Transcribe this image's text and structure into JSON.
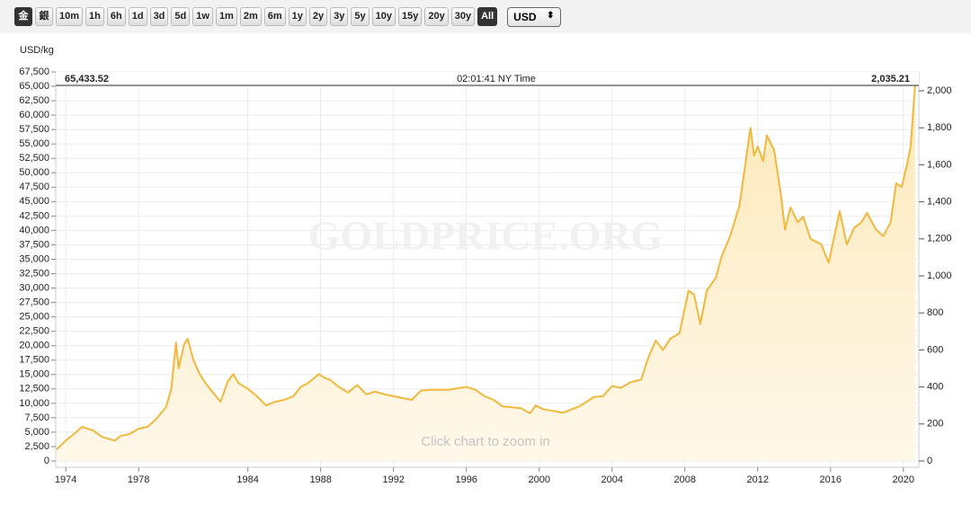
{
  "toolbar": {
    "buttons": [
      "金",
      "銀",
      "10m",
      "1h",
      "6h",
      "1d",
      "3d",
      "5d",
      "1w",
      "1m",
      "2m",
      "6m",
      "1y",
      "2y",
      "3y",
      "5y",
      "10y",
      "15y",
      "20y",
      "30y",
      "All"
    ],
    "active": [
      0,
      20
    ],
    "currency": "USD"
  },
  "chart_data": {
    "type": "area",
    "ylabel": "USD/kg",
    "header_left": "65,433.52",
    "header_center": "02:01:41 NY Time",
    "header_right": "2,035.21",
    "watermark": "GOLDPRICE.ORG",
    "annotation": "Click chart to zoom in",
    "x": [
      1973.5,
      1974.0,
      1974.5,
      1974.9,
      1975.5,
      1976.0,
      1976.7,
      1977.0,
      1977.5,
      1978.0,
      1978.5,
      1979.0,
      1979.5,
      1979.8,
      1980.05,
      1980.2,
      1980.5,
      1980.7,
      1981.0,
      1981.3,
      1981.6,
      1982.0,
      1982.5,
      1982.9,
      1983.2,
      1983.5,
      1984.0,
      1984.5,
      1985.0,
      1985.5,
      1986.0,
      1986.5,
      1986.9,
      1987.3,
      1987.9,
      1988.2,
      1988.5,
      1989.0,
      1989.5,
      1990.0,
      1990.5,
      1991.0,
      1991.5,
      1992.0,
      1992.5,
      1993.0,
      1993.5,
      1994.0,
      1995.0,
      1996.0,
      1996.5,
      1997.0,
      1997.5,
      1998.0,
      1998.5,
      1999.0,
      1999.5,
      1999.8,
      2000.2,
      2000.8,
      2001.3,
      2001.8,
      2002.2,
      2002.6,
      2003.0,
      2003.5,
      2004.0,
      2004.5,
      2005.0,
      2005.6,
      2006.0,
      2006.4,
      2006.8,
      2007.2,
      2007.7,
      2008.2,
      2008.5,
      2008.85,
      2009.2,
      2009.7,
      2010.0,
      2010.5,
      2011.0,
      2011.6,
      2011.8,
      2012.0,
      2012.3,
      2012.5,
      2012.9,
      2013.3,
      2013.5,
      2013.8,
      2014.2,
      2014.5,
      2014.9,
      2015.5,
      2015.9,
      2016.5,
      2016.9,
      2017.3,
      2017.7,
      2018.0,
      2018.5,
      2018.9,
      2019.3,
      2019.6,
      2019.9,
      2020.2,
      2020.4,
      2020.65
    ],
    "series": [
      {
        "name": "Gold",
        "color": "#f0b83c",
        "axis": "y2",
        "values": [
          62,
          110,
          150,
          185,
          165,
          130,
          110,
          135,
          145,
          175,
          185,
          230,
          290,
          390,
          640,
          500,
          630,
          660,
          550,
          480,
          430,
          380,
          320,
          430,
          470,
          420,
          390,
          350,
          300,
          320,
          330,
          350,
          400,
          420,
          470,
          450,
          440,
          400,
          370,
          410,
          360,
          375,
          360,
          350,
          340,
          330,
          380,
          385,
          385,
          400,
          385,
          350,
          330,
          295,
          290,
          285,
          258,
          300,
          280,
          270,
          260,
          280,
          295,
          320,
          345,
          350,
          405,
          395,
          425,
          440,
          560,
          650,
          600,
          660,
          690,
          920,
          900,
          740,
          920,
          990,
          1100,
          1220,
          1380,
          1800,
          1650,
          1700,
          1620,
          1760,
          1680,
          1420,
          1250,
          1370,
          1290,
          1320,
          1200,
          1170,
          1070,
          1350,
          1170,
          1260,
          1290,
          1340,
          1250,
          1215,
          1290,
          1500,
          1480,
          1600,
          1700,
          2035.21
        ]
      }
    ],
    "xlim": [
      1973.45,
      2020.85
    ],
    "xticks": [
      1974,
      1978,
      1984,
      1988,
      1992,
      1996,
      2000,
      2004,
      2008,
      2012,
      2016,
      2020
    ],
    "ylim": [
      0,
      67500
    ],
    "yticks": [
      0,
      {
        "value": 2500,
        "label": "2,500"
      },
      {
        "value": 5000,
        "label": "5,000"
      },
      {
        "value": 7500,
        "label": "7,500"
      },
      {
        "value": 10000,
        "label": "10,000"
      },
      {
        "value": 12500,
        "label": "12,500"
      },
      {
        "value": 15000,
        "label": "15,000"
      },
      {
        "value": 17500,
        "label": "17,500"
      },
      {
        "value": 20000,
        "label": "20,000"
      },
      {
        "value": 22500,
        "label": "22,500"
      },
      {
        "value": 25000,
        "label": "25,000"
      },
      {
        "value": 27500,
        "label": "27,500"
      },
      {
        "value": 30000,
        "label": "30,000"
      },
      {
        "value": 32500,
        "label": "32,500"
      },
      {
        "value": 35000,
        "label": "35,000"
      },
      {
        "value": 37500,
        "label": "37,500"
      },
      {
        "value": 40000,
        "label": "40,000"
      },
      {
        "value": 42500,
        "label": "42,500"
      },
      {
        "value": 45000,
        "label": "45,000"
      },
      {
        "value": 47500,
        "label": "47,500"
      },
      {
        "value": 50000,
        "label": "50,000"
      },
      {
        "value": 52500,
        "label": "52,500"
      },
      {
        "value": 55000,
        "label": "55,000"
      },
      {
        "value": 57500,
        "label": "57,500"
      },
      {
        "value": 60000,
        "label": "60,000"
      },
      {
        "value": 62500,
        "label": "62,500"
      },
      {
        "value": 65000,
        "label": "65,000"
      },
      {
        "value": 67500,
        "label": "67,500"
      }
    ],
    "y2lim": [
      0,
      2102
    ],
    "y2ticks": [
      0,
      200,
      400,
      600,
      800,
      {
        "value": 1000,
        "label": "1,000"
      },
      {
        "value": 1200,
        "label": "1,200"
      },
      {
        "value": 1400,
        "label": "1,400"
      },
      {
        "value": 1600,
        "label": "1,600"
      },
      {
        "value": 1800,
        "label": "1,800"
      },
      {
        "value": 2000,
        "label": "2,000"
      }
    ],
    "grid": true
  }
}
